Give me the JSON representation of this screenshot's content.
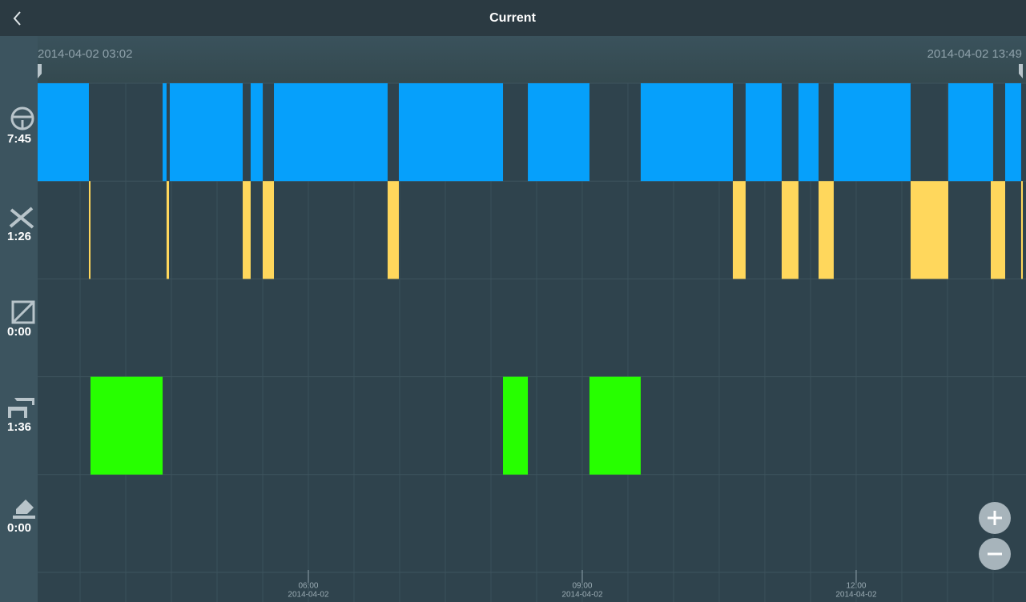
{
  "header": {
    "title": "Current"
  },
  "range": {
    "start": "2014-04-02 03:02",
    "end": "2014-04-02 13:49"
  },
  "timeline": {
    "xlim": [
      3.035,
      13.825
    ],
    "xticks": [
      {
        "value": 6,
        "label": "06:00",
        "date": "2014-04-02"
      },
      {
        "value": 9,
        "label": "09:00",
        "date": "2014-04-02"
      },
      {
        "value": 12,
        "label": "12:00",
        "date": "2014-04-02"
      }
    ],
    "grid": [
      3.5,
      4,
      4.5,
      5,
      5.5,
      6,
      6.5,
      7,
      7.5,
      8,
      8.5,
      9,
      9.5,
      10,
      10.5,
      11,
      11.5,
      12,
      12.5,
      13,
      13.5
    ],
    "rows": [
      {
        "total": "7:45",
        "color": "#06a0fb",
        "segments": [
          [
            3.035,
            3.596
          ],
          [
            4.404,
            4.447
          ],
          [
            4.482,
            5.281
          ],
          [
            5.368,
            5.5
          ],
          [
            5.623,
            6.868
          ],
          [
            6.991,
            8.132
          ],
          [
            8.404,
            9.079
          ],
          [
            9.64,
            10.649
          ],
          [
            10.789,
            11.184
          ],
          [
            11.368,
            11.588
          ],
          [
            11.754,
            12.596
          ],
          [
            13.009,
            13.5
          ],
          [
            13.632,
            13.807
          ]
        ]
      },
      {
        "total": "1:26",
        "color": "#ffd75c",
        "segments": [
          [
            3.596,
            3.614
          ],
          [
            4.447,
            4.474
          ],
          [
            5.281,
            5.368
          ],
          [
            5.5,
            5.623
          ],
          [
            6.868,
            6.991
          ],
          [
            10.649,
            10.789
          ],
          [
            11.184,
            11.368
          ],
          [
            11.588,
            11.754
          ],
          [
            12.596,
            13.009
          ],
          [
            13.474,
            13.632
          ],
          [
            13.807,
            13.825
          ]
        ]
      },
      {
        "total": "0:00",
        "color": "#8a99a0",
        "segments": []
      },
      {
        "total": "1:36",
        "color": "#27ff00",
        "segments": [
          [
            3.614,
            4.404
          ],
          [
            8.132,
            8.404
          ],
          [
            9.079,
            9.64
          ]
        ]
      },
      {
        "total": "0:00",
        "color": "#8a99a0",
        "segments": []
      }
    ]
  }
}
